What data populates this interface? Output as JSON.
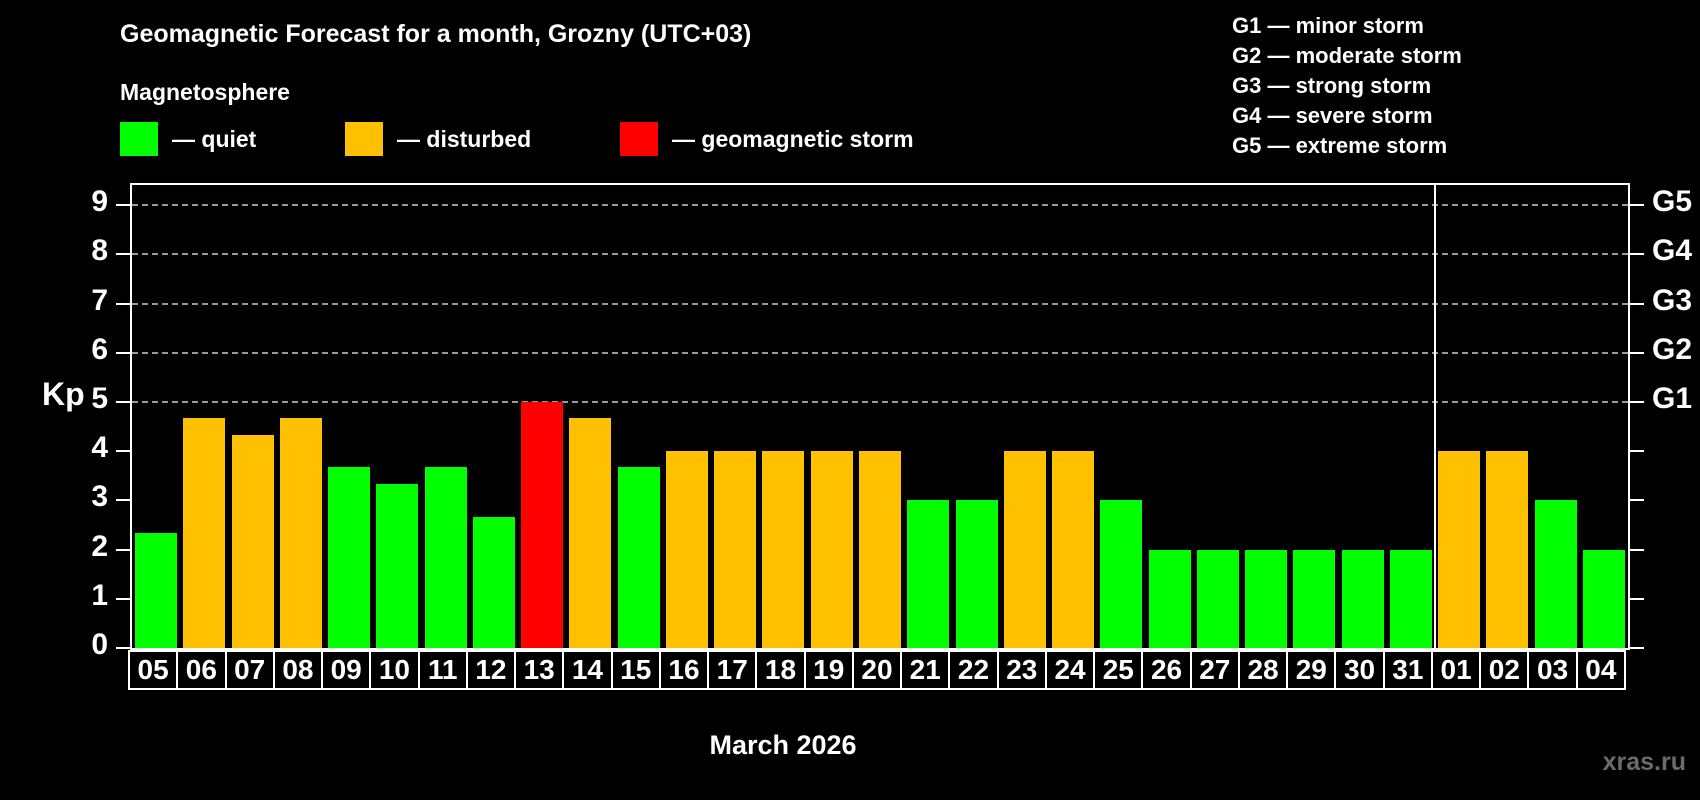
{
  "header": {
    "title": "Geomagnetic Forecast for a month, Grozny (UTC+03)",
    "subtitle": "Magnetosphere"
  },
  "watermark": "xras.ru",
  "chart_data": {
    "type": "bar",
    "title": "Geomagnetic Forecast for a month, Grozny (UTC+03)",
    "subtitle": "Magnetosphere",
    "xlabel": "March 2026",
    "ylabel": "Kp",
    "ylim": [
      0,
      9.4
    ],
    "yticks": [
      0,
      1,
      2,
      3,
      4,
      5,
      6,
      7,
      8,
      9
    ],
    "gridlines_dashed_at": [
      5,
      6,
      7,
      8,
      9
    ],
    "grid": "dashed horizontal at Kp 5-9 only",
    "legend_position": "top-left",
    "colors": {
      "quiet": "#00FF00",
      "disturbed": "#FFC000",
      "storm": "#FF0000",
      "background": "#000000",
      "axis": "#FFFFFF",
      "gridline": "#999999",
      "watermark": "#6B6B6B"
    },
    "legend": [
      {
        "key": "quiet",
        "label": "— quiet",
        "color": "#00FF00"
      },
      {
        "key": "disturbed",
        "label": "— disturbed",
        "color": "#FFC000"
      },
      {
        "key": "storm",
        "label": "— geomagnetic storm",
        "color": "#FF0000"
      }
    ],
    "storm_scale_legend": [
      {
        "label": "G1 — minor storm"
      },
      {
        "label": "G2 — moderate storm"
      },
      {
        "label": "G3 — strong storm"
      },
      {
        "label": "G4 — severe storm"
      },
      {
        "label": "G5 — extreme storm"
      }
    ],
    "right_axis_labels": [
      {
        "label": "G1",
        "kp": 5
      },
      {
        "label": "G2",
        "kp": 6
      },
      {
        "label": "G3",
        "kp": 7
      },
      {
        "label": "G4",
        "kp": 8
      },
      {
        "label": "G5",
        "kp": 9
      }
    ],
    "month_separator_after_index": 26,
    "bars": [
      {
        "day": "05",
        "kp": 2.33,
        "level": "quiet"
      },
      {
        "day": "06",
        "kp": 4.67,
        "level": "disturbed"
      },
      {
        "day": "07",
        "kp": 4.33,
        "level": "disturbed"
      },
      {
        "day": "08",
        "kp": 4.67,
        "level": "disturbed"
      },
      {
        "day": "09",
        "kp": 3.67,
        "level": "quiet"
      },
      {
        "day": "10",
        "kp": 3.33,
        "level": "quiet"
      },
      {
        "day": "11",
        "kp": 3.67,
        "level": "quiet"
      },
      {
        "day": "12",
        "kp": 2.67,
        "level": "quiet"
      },
      {
        "day": "13",
        "kp": 5.0,
        "level": "storm"
      },
      {
        "day": "14",
        "kp": 4.67,
        "level": "disturbed"
      },
      {
        "day": "15",
        "kp": 3.67,
        "level": "quiet"
      },
      {
        "day": "16",
        "kp": 4.0,
        "level": "disturbed"
      },
      {
        "day": "17",
        "kp": 4.0,
        "level": "disturbed"
      },
      {
        "day": "18",
        "kp": 4.0,
        "level": "disturbed"
      },
      {
        "day": "19",
        "kp": 4.0,
        "level": "disturbed"
      },
      {
        "day": "20",
        "kp": 4.0,
        "level": "disturbed"
      },
      {
        "day": "21",
        "kp": 3.0,
        "level": "quiet"
      },
      {
        "day": "22",
        "kp": 3.0,
        "level": "quiet"
      },
      {
        "day": "23",
        "kp": 4.0,
        "level": "disturbed"
      },
      {
        "day": "24",
        "kp": 4.0,
        "level": "disturbed"
      },
      {
        "day": "25",
        "kp": 3.0,
        "level": "quiet"
      },
      {
        "day": "26",
        "kp": 2.0,
        "level": "quiet"
      },
      {
        "day": "27",
        "kp": 2.0,
        "level": "quiet"
      },
      {
        "day": "28",
        "kp": 2.0,
        "level": "quiet"
      },
      {
        "day": "29",
        "kp": 2.0,
        "level": "quiet"
      },
      {
        "day": "30",
        "kp": 2.0,
        "level": "quiet"
      },
      {
        "day": "31",
        "kp": 2.0,
        "level": "quiet"
      },
      {
        "day": "01",
        "kp": 4.0,
        "level": "disturbed"
      },
      {
        "day": "02",
        "kp": 4.0,
        "level": "disturbed"
      },
      {
        "day": "03",
        "kp": 3.0,
        "level": "quiet"
      },
      {
        "day": "04",
        "kp": 2.0,
        "level": "quiet"
      }
    ]
  }
}
